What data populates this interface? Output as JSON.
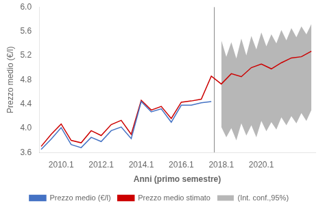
{
  "chart_data": {
    "type": "line",
    "xlabel": "Anni (primo semestre)",
    "ylabel": "Prezzo medio (€/l)",
    "xlim": [
      2009.0,
      2022.8
    ],
    "xticks": [
      2010.1,
      2012.1,
      2014.1,
      2016.1,
      2018.1,
      2020.1
    ],
    "ylim": [
      3.6,
      6.0
    ],
    "yticks": [
      {
        "value": 3.6,
        "label": "3.6"
      },
      {
        "value": 4.0,
        "label": "4.0"
      },
      {
        "value": 4.4,
        "label": "4.4"
      },
      {
        "value": 4.8,
        "label": "4.8"
      },
      {
        "value": 5.2,
        "label": "5.2"
      },
      {
        "value": 5.6,
        "label": "5.6"
      },
      {
        "value": 6.0,
        "label": "6.0"
      }
    ],
    "grid": false,
    "legend": "bottom",
    "vlines": [
      {
        "x": 2017.75,
        "color": "#888888"
      }
    ],
    "series": [
      {
        "name": "Prezzo medio (€/l)",
        "color": "#4472C4",
        "x": [
          2009.1,
          2009.6,
          2010.1,
          2010.6,
          2011.1,
          2011.6,
          2012.1,
          2012.6,
          2013.1,
          2013.6,
          2014.1,
          2014.6,
          2015.1,
          2015.6,
          2016.1,
          2016.6,
          2017.1,
          2017.6
        ],
        "values": [
          3.65,
          3.82,
          4.01,
          3.73,
          3.68,
          3.85,
          3.78,
          3.96,
          4.02,
          3.83,
          4.44,
          4.27,
          4.32,
          4.1,
          4.38,
          4.38,
          4.42,
          4.44
        ]
      },
      {
        "name": "Prezzo medio stimato",
        "color": "#CC0000",
        "x": [
          2009.1,
          2009.6,
          2010.1,
          2010.6,
          2011.1,
          2011.6,
          2012.1,
          2012.6,
          2013.1,
          2013.6,
          2014.1,
          2014.6,
          2015.1,
          2015.6,
          2016.1,
          2016.6,
          2017.1,
          2017.6,
          2018.1,
          2018.6,
          2019.1,
          2019.6,
          2020.1,
          2020.6,
          2021.1,
          2021.6,
          2022.1,
          2022.6
        ],
        "values": [
          3.7,
          3.9,
          4.07,
          3.8,
          3.76,
          3.96,
          3.88,
          4.06,
          4.13,
          3.9,
          4.46,
          4.3,
          4.36,
          4.16,
          4.43,
          4.45,
          4.48,
          4.86,
          4.73,
          4.9,
          4.85,
          5.0,
          5.06,
          4.98,
          5.08,
          5.16,
          5.18,
          5.27
        ]
      },
      {
        "name": "(Int. conf.,95%)",
        "type": "area",
        "color": "#AAAAAA",
        "x": [
          2018.1,
          2018.35,
          2018.6,
          2018.85,
          2019.1,
          2019.35,
          2019.6,
          2019.85,
          2020.1,
          2020.35,
          2020.6,
          2020.85,
          2021.1,
          2021.35,
          2021.6,
          2021.85,
          2022.1,
          2022.35,
          2022.6
        ],
        "upper": [
          5.45,
          5.18,
          5.42,
          5.15,
          5.48,
          5.2,
          5.52,
          5.3,
          5.58,
          5.35,
          5.55,
          5.4,
          5.62,
          5.45,
          5.65,
          5.5,
          5.68,
          5.55,
          5.72
        ],
        "lower": [
          4.02,
          3.85,
          4.0,
          3.8,
          4.08,
          3.88,
          4.05,
          3.85,
          4.12,
          3.95,
          4.1,
          3.98,
          4.18,
          4.05,
          4.2,
          4.08,
          4.25,
          4.12,
          4.3
        ]
      }
    ]
  }
}
